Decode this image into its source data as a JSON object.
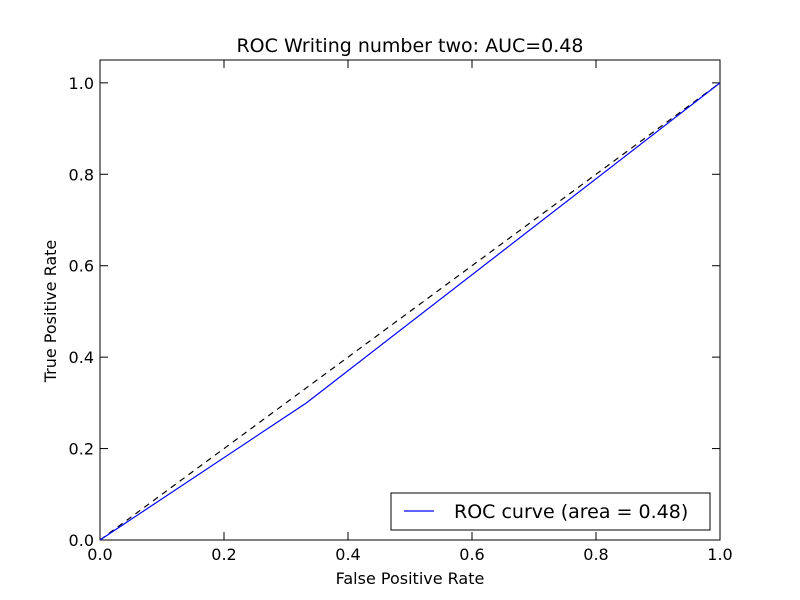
{
  "chart_data": {
    "type": "line",
    "title": "ROC Writing number two: AUC=0.48",
    "xlabel": "False Positive Rate",
    "ylabel": "True Positive Rate",
    "xlim": [
      0.0,
      1.0
    ],
    "ylim": [
      0.0,
      1.05
    ],
    "xticks": [
      0.0,
      0.2,
      0.4,
      0.6,
      0.8,
      1.0
    ],
    "yticks": [
      0.0,
      0.2,
      0.4,
      0.6,
      0.8,
      1.0
    ],
    "xtick_labels": [
      "0.0",
      "0.2",
      "0.4",
      "0.6",
      "0.8",
      "1.0"
    ],
    "ytick_labels": [
      "0.0",
      "0.2",
      "0.4",
      "0.6",
      "0.8",
      "1.0"
    ],
    "grid": false,
    "legend_position": "lower-right",
    "series": [
      {
        "name": "ROC curve (area = 0.48)",
        "color": "#0000ff",
        "style": "solid",
        "x": [
          0.0,
          0.333,
          1.0
        ],
        "y": [
          0.0,
          0.3,
          1.0
        ]
      },
      {
        "color": "#000000",
        "style": "dashed",
        "x": [
          0.0,
          1.0
        ],
        "y": [
          0.0,
          1.0
        ]
      }
    ]
  }
}
